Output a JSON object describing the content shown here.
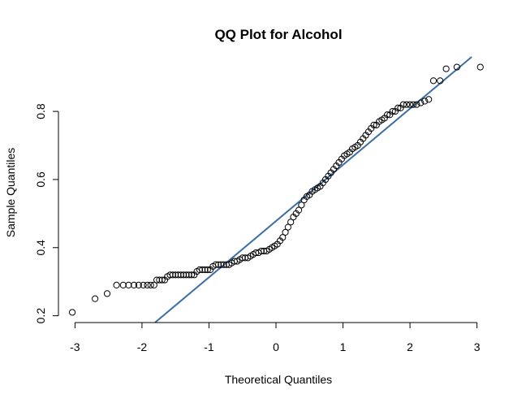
{
  "chart_data": {
    "type": "scatter",
    "title": "QQ Plot for Alcohol",
    "xlabel": "Theoretical Quantiles",
    "ylabel": "Sample Quantiles",
    "xlim": [
      -3.15,
      3.15
    ],
    "ylim": [
      0.18,
      0.96
    ],
    "x_ticks": [
      -3,
      -2,
      -1,
      0,
      1,
      2,
      3
    ],
    "x_tick_labels": [
      "-3",
      "-2",
      "-1",
      "0",
      "1",
      "2",
      "3"
    ],
    "y_ticks": [
      0.2,
      0.4,
      0.6,
      0.8
    ],
    "y_tick_labels": [
      "0.2",
      "0.4",
      "0.6",
      "0.8"
    ],
    "grid": false,
    "reference_line": {
      "slope": 0.165,
      "intercept": 0.478,
      "color": "#3a6ea5"
    },
    "series": [
      {
        "marker": "open-circle",
        "points": [
          [
            -3.04,
            0.21
          ],
          [
            -2.7,
            0.25
          ],
          [
            -2.52,
            0.265
          ],
          [
            -2.38,
            0.29
          ],
          [
            -2.28,
            0.29
          ],
          [
            -2.2,
            0.29
          ],
          [
            -2.12,
            0.29
          ],
          [
            -2.05,
            0.29
          ],
          [
            -1.98,
            0.29
          ],
          [
            -1.92,
            0.29
          ],
          [
            -1.87,
            0.29
          ],
          [
            -1.82,
            0.29
          ],
          [
            -1.78,
            0.305
          ],
          [
            -1.74,
            0.305
          ],
          [
            -1.7,
            0.305
          ],
          [
            -1.66,
            0.305
          ],
          [
            -1.62,
            0.315
          ],
          [
            -1.58,
            0.32
          ],
          [
            -1.54,
            0.32
          ],
          [
            -1.5,
            0.32
          ],
          [
            -1.46,
            0.32
          ],
          [
            -1.42,
            0.32
          ],
          [
            -1.38,
            0.32
          ],
          [
            -1.34,
            0.32
          ],
          [
            -1.3,
            0.32
          ],
          [
            -1.26,
            0.32
          ],
          [
            -1.22,
            0.32
          ],
          [
            -1.18,
            0.33
          ],
          [
            -1.14,
            0.335
          ],
          [
            -1.1,
            0.335
          ],
          [
            -1.06,
            0.335
          ],
          [
            -1.02,
            0.335
          ],
          [
            -0.98,
            0.335
          ],
          [
            -0.94,
            0.345
          ],
          [
            -0.9,
            0.35
          ],
          [
            -0.86,
            0.35
          ],
          [
            -0.82,
            0.35
          ],
          [
            -0.78,
            0.35
          ],
          [
            -0.74,
            0.35
          ],
          [
            -0.7,
            0.35
          ],
          [
            -0.66,
            0.355
          ],
          [
            -0.62,
            0.36
          ],
          [
            -0.58,
            0.36
          ],
          [
            -0.54,
            0.365
          ],
          [
            -0.5,
            0.37
          ],
          [
            -0.46,
            0.37
          ],
          [
            -0.42,
            0.37
          ],
          [
            -0.38,
            0.375
          ],
          [
            -0.34,
            0.38
          ],
          [
            -0.3,
            0.385
          ],
          [
            -0.26,
            0.385
          ],
          [
            -0.22,
            0.39
          ],
          [
            -0.18,
            0.39
          ],
          [
            -0.14,
            0.39
          ],
          [
            -0.1,
            0.395
          ],
          [
            -0.06,
            0.4
          ],
          [
            -0.02,
            0.405
          ],
          [
            0.02,
            0.41
          ],
          [
            0.06,
            0.42
          ],
          [
            0.1,
            0.43
          ],
          [
            0.14,
            0.445
          ],
          [
            0.18,
            0.46
          ],
          [
            0.22,
            0.475
          ],
          [
            0.26,
            0.49
          ],
          [
            0.3,
            0.5
          ],
          [
            0.34,
            0.51
          ],
          [
            0.38,
            0.525
          ],
          [
            0.42,
            0.54
          ],
          [
            0.46,
            0.55
          ],
          [
            0.5,
            0.555
          ],
          [
            0.54,
            0.565
          ],
          [
            0.58,
            0.57
          ],
          [
            0.62,
            0.575
          ],
          [
            0.66,
            0.58
          ],
          [
            0.7,
            0.59
          ],
          [
            0.74,
            0.6
          ],
          [
            0.78,
            0.61
          ],
          [
            0.82,
            0.62
          ],
          [
            0.86,
            0.63
          ],
          [
            0.9,
            0.64
          ],
          [
            0.94,
            0.65
          ],
          [
            0.98,
            0.66
          ],
          [
            1.02,
            0.67
          ],
          [
            1.06,
            0.675
          ],
          [
            1.1,
            0.68
          ],
          [
            1.14,
            0.69
          ],
          [
            1.18,
            0.695
          ],
          [
            1.22,
            0.7
          ],
          [
            1.26,
            0.71
          ],
          [
            1.3,
            0.72
          ],
          [
            1.34,
            0.73
          ],
          [
            1.38,
            0.74
          ],
          [
            1.42,
            0.75
          ],
          [
            1.46,
            0.76
          ],
          [
            1.5,
            0.76
          ],
          [
            1.54,
            0.77
          ],
          [
            1.58,
            0.775
          ],
          [
            1.62,
            0.78
          ],
          [
            1.66,
            0.79
          ],
          [
            1.7,
            0.79
          ],
          [
            1.74,
            0.8
          ],
          [
            1.78,
            0.8
          ],
          [
            1.82,
            0.81
          ],
          [
            1.86,
            0.81
          ],
          [
            1.9,
            0.82
          ],
          [
            1.95,
            0.82
          ],
          [
            2.0,
            0.82
          ],
          [
            2.05,
            0.82
          ],
          [
            2.1,
            0.82
          ],
          [
            2.16,
            0.825
          ],
          [
            2.22,
            0.83
          ],
          [
            2.28,
            0.835
          ],
          [
            2.35,
            0.89
          ],
          [
            2.45,
            0.89
          ],
          [
            2.54,
            0.925
          ],
          [
            2.7,
            0.93
          ],
          [
            3.05,
            0.93
          ]
        ]
      }
    ]
  }
}
